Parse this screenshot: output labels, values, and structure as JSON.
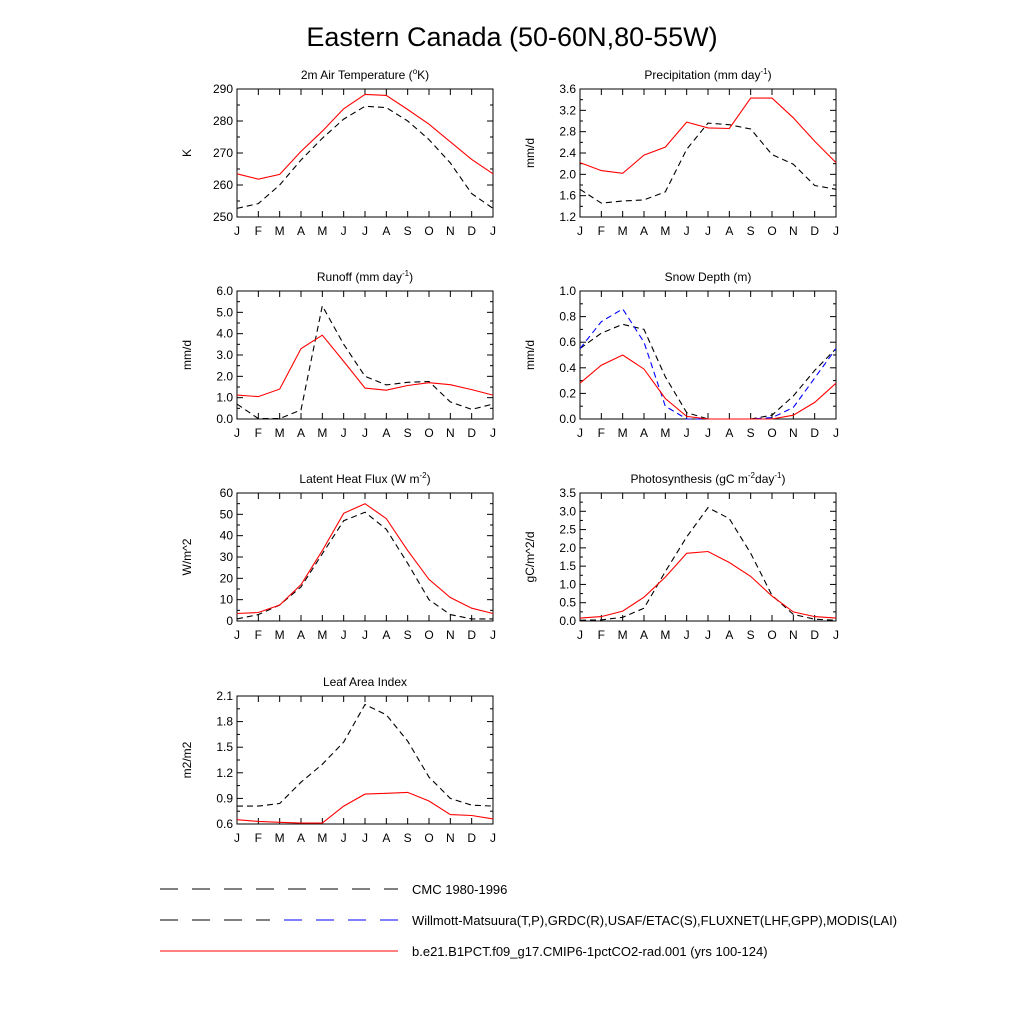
{
  "figure_title": "Eastern Canada (50-60N,80-55W)",
  "months": [
    "J",
    "F",
    "M",
    "A",
    "M",
    "J",
    "J",
    "A",
    "S",
    "O",
    "N",
    "D",
    "J"
  ],
  "colors": {
    "model": "#ff0000",
    "obs": "#000000",
    "obs_alt": "#0000ff",
    "axis": "#000000"
  },
  "legend": {
    "items": [
      {
        "label": "CMC 1980-1996",
        "style": "dash-black"
      },
      {
        "label": "Willmott-Matsuura(T,P),GRDC(R),USAF/ETAC(S),FLUXNET(LHF,GPP),MODIS(LAI)",
        "style": "dash-black-blue"
      },
      {
        "label": "b.e21.B1PCT.f09_g17.CMIP6-1pctCO2-rad.001 (yrs 100-124)",
        "style": "solid-red"
      }
    ]
  },
  "chart_data": [
    {
      "type": "line",
      "title": "2m Air Temperature (",
      "title_sup": "o",
      "title_after": "K)",
      "ylabel": "K",
      "ylim": [
        250,
        290
      ],
      "yticks": [
        250,
        260,
        270,
        280,
        290
      ],
      "ytick_labels": [
        "250",
        "260",
        "270",
        "280",
        "290"
      ],
      "series": [
        {
          "style": "solid-red",
          "values": [
            263.5,
            261.8,
            263.3,
            270.5,
            276.8,
            283.8,
            288.3,
            288,
            283.6,
            279,
            273.5,
            268,
            263.5
          ]
        },
        {
          "style": "dash-black",
          "values": [
            252.7,
            254.2,
            260,
            267.8,
            274.6,
            280.6,
            284.6,
            284.2,
            280,
            274.2,
            266.9,
            257.3,
            252.7
          ]
        }
      ]
    },
    {
      "type": "line",
      "title": "Precipitation (mm day",
      "title_sup": "-1",
      "title_after": ")",
      "ylabel": "mm/d",
      "ylim": [
        1.2,
        3.6
      ],
      "yticks": [
        1.2,
        1.6,
        2.0,
        2.4,
        2.8,
        3.2,
        3.6
      ],
      "ytick_labels": [
        "1.2",
        "1.6",
        "2.0",
        "2.4",
        "2.8",
        "3.2",
        "3.6"
      ],
      "series": [
        {
          "style": "solid-red",
          "values": [
            2.22,
            2.07,
            2.02,
            2.36,
            2.51,
            2.98,
            2.87,
            2.86,
            3.43,
            3.43,
            3.06,
            2.62,
            2.22
          ]
        },
        {
          "style": "dash-black",
          "values": [
            1.72,
            1.46,
            1.5,
            1.52,
            1.67,
            2.47,
            2.96,
            2.93,
            2.85,
            2.37,
            2.19,
            1.79,
            1.72
          ]
        }
      ]
    },
    {
      "type": "line",
      "title": "Runoff (mm day",
      "title_sup": "-1",
      "title_after": ")",
      "ylabel": "mm/d",
      "ylim": [
        0,
        6
      ],
      "yticks": [
        0,
        1,
        2,
        3,
        4,
        5,
        6
      ],
      "ytick_labels": [
        "0.0",
        "1.0",
        "2.0",
        "3.0",
        "4.0",
        "5.0",
        "6.0"
      ],
      "series": [
        {
          "style": "solid-red",
          "values": [
            1.12,
            1.05,
            1.4,
            3.3,
            3.93,
            2.7,
            1.45,
            1.35,
            1.57,
            1.7,
            1.61,
            1.38,
            1.12
          ]
        },
        {
          "style": "dash-black",
          "values": [
            0.7,
            0.02,
            0.02,
            0.42,
            5.3,
            3.5,
            2.0,
            1.6,
            1.72,
            1.76,
            0.8,
            0.45,
            0.7
          ]
        }
      ]
    },
    {
      "type": "line",
      "title": "Snow Depth (m)",
      "title_sup": "",
      "title_after": "",
      "ylabel": "mm/d",
      "ylim": [
        0,
        1
      ],
      "yticks": [
        0,
        0.2,
        0.4,
        0.6,
        0.8,
        1.0
      ],
      "ytick_labels": [
        "0.0",
        "0.2",
        "0.4",
        "0.6",
        "0.8",
        "1.0"
      ],
      "series": [
        {
          "style": "solid-red",
          "values": [
            0.28,
            0.42,
            0.5,
            0.39,
            0.16,
            0.02,
            0,
            0,
            0,
            0,
            0.03,
            0.13,
            0.28
          ]
        },
        {
          "style": "dash-black",
          "values": [
            0.55,
            0.67,
            0.74,
            0.7,
            0.33,
            0.05,
            0,
            0,
            0,
            0.03,
            0.18,
            0.38,
            0.55
          ]
        },
        {
          "style": "dash-blue",
          "values": [
            0.55,
            0.76,
            0.86,
            0.6,
            0.1,
            0,
            0,
            0,
            0,
            0.01,
            0.09,
            0.32,
            0.55
          ]
        }
      ]
    },
    {
      "type": "line",
      "title": "Latent Heat Flux (W m",
      "title_sup": "-2",
      "title_after": ")",
      "ylabel": "W/m^2",
      "ylim": [
        0,
        60
      ],
      "yticks": [
        0,
        10,
        20,
        30,
        40,
        50,
        60
      ],
      "ytick_labels": [
        "0",
        "10",
        "20",
        "30",
        "40",
        "50",
        "60"
      ],
      "series": [
        {
          "style": "solid-red",
          "values": [
            3.5,
            4,
            7.5,
            17,
            33,
            50.5,
            55,
            48,
            33,
            19.5,
            11,
            6,
            3.5
          ]
        },
        {
          "style": "dash-black",
          "values": [
            1,
            3,
            7.5,
            16,
            31.5,
            47,
            51,
            43,
            27,
            10,
            3,
            1,
            1
          ]
        }
      ]
    },
    {
      "type": "line",
      "title": "Photosynthesis (gC m",
      "title_sup": "-2",
      "title_mid": "day",
      "title_sup2": "-1",
      "title_after": ")",
      "ylabel": "gC/m^2/d",
      "ylim": [
        0,
        3.5
      ],
      "yticks": [
        0,
        0.5,
        1.0,
        1.5,
        2.0,
        2.5,
        3.0,
        3.5
      ],
      "ytick_labels": [
        "0.0",
        "0.5",
        "1.0",
        "1.5",
        "2.0",
        "2.5",
        "3.0",
        "3.5"
      ],
      "series": [
        {
          "style": "solid-red",
          "values": [
            0.08,
            0.12,
            0.27,
            0.65,
            1.2,
            1.85,
            1.9,
            1.6,
            1.22,
            0.68,
            0.25,
            0.12,
            0.08
          ]
        },
        {
          "style": "dash-black",
          "values": [
            0.02,
            0.03,
            0.1,
            0.35,
            1.35,
            2.3,
            3.1,
            2.8,
            1.85,
            0.7,
            0.18,
            0.05,
            0.02
          ]
        }
      ]
    },
    {
      "type": "line",
      "title": "Leaf Area Index",
      "title_sup": "",
      "title_after": "",
      "ylabel": "m2/m2",
      "ylim": [
        0.6,
        2.1
      ],
      "yticks": [
        0.6,
        0.9,
        1.2,
        1.5,
        1.8,
        2.1
      ],
      "ytick_labels": [
        "0.6",
        "0.9",
        "1.2",
        "1.5",
        "1.8",
        "2.1"
      ],
      "series": [
        {
          "style": "solid-red",
          "values": [
            0.65,
            0.63,
            0.62,
            0.61,
            0.61,
            0.81,
            0.95,
            0.96,
            0.97,
            0.87,
            0.71,
            0.7,
            0.66
          ]
        },
        {
          "style": "dash-black",
          "values": [
            0.81,
            0.81,
            0.84,
            1.09,
            1.3,
            1.56,
            2.0,
            1.88,
            1.57,
            1.15,
            0.9,
            0.82,
            0.81
          ]
        }
      ]
    }
  ]
}
